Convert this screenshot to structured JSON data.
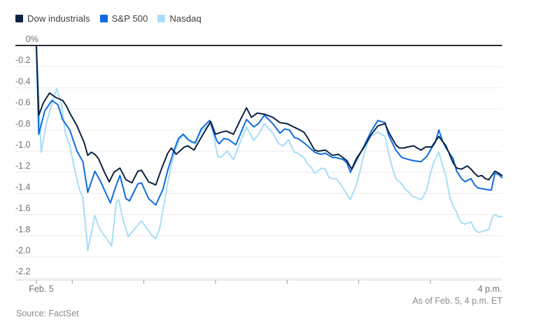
{
  "legend": {
    "items": [
      {
        "label": "Dow industrials",
        "color": "#0c2340"
      },
      {
        "label": "S&P 500",
        "color": "#0f6be0"
      },
      {
        "label": "Nasdaq",
        "color": "#a8ddf8"
      }
    ]
  },
  "chart_data": {
    "type": "line",
    "title": "",
    "x_unit": "minutes since 9:30 a.m. ET open, Feb. 5",
    "xlim": [
      0,
      390
    ],
    "y_unit": "percent change",
    "ylim": [
      -2.2,
      0
    ],
    "grid": true,
    "legend_position": "top-left",
    "zero_line_color": "#2e2e2e",
    "gridline_color": "#ebebeb",
    "axis_line_color": "#d2d2d2",
    "tick_color": "#9b9b9b",
    "label_color": "#707070",
    "y_tick_labels": [
      "0%",
      "-0.2",
      "-0.4",
      "-0.6",
      "-0.8",
      "-1.0",
      "-1.2",
      "-1.4",
      "-1.6",
      "-1.8",
      "-2.0",
      "-2.2"
    ],
    "x_ticks": [
      {
        "minutes": 0,
        "label": "Feb. 5"
      },
      {
        "minutes": 30,
        "label": ""
      },
      {
        "minutes": 90,
        "label": ""
      },
      {
        "minutes": 150,
        "label": ""
      },
      {
        "minutes": 210,
        "label": ""
      },
      {
        "minutes": 270,
        "label": ""
      },
      {
        "minutes": 330,
        "label": ""
      }
    ],
    "x_end_label": "4 p.m.",
    "as_of": "As of Feb. 5, 4 p.m. ET",
    "source": "Source: FactSet",
    "series": [
      {
        "name": "Dow industrials",
        "color": "#0c2340",
        "width": 2,
        "points": [
          [
            0,
            0
          ],
          [
            2,
            -0.66
          ],
          [
            6,
            -0.54
          ],
          [
            11,
            -0.45
          ],
          [
            16,
            -0.49
          ],
          [
            22,
            -0.52
          ],
          [
            25,
            -0.57
          ],
          [
            28,
            -0.64
          ],
          [
            34,
            -0.76
          ],
          [
            40,
            -0.92
          ],
          [
            43,
            -1.04
          ],
          [
            46,
            -1.01
          ],
          [
            49,
            -1.03
          ],
          [
            52,
            -1.07
          ],
          [
            57,
            -1.2
          ],
          [
            61,
            -1.29
          ],
          [
            65,
            -1.2
          ],
          [
            70,
            -1.16
          ],
          [
            75,
            -1.27
          ],
          [
            80,
            -1.3
          ],
          [
            85,
            -1.19
          ],
          [
            88,
            -1.18
          ],
          [
            94,
            -1.29
          ],
          [
            100,
            -1.32
          ],
          [
            105,
            -1.16
          ],
          [
            110,
            -1.02
          ],
          [
            113,
            -0.97
          ],
          [
            117,
            -1.03
          ],
          [
            124,
            -0.96
          ],
          [
            127,
            -0.95
          ],
          [
            132,
            -0.99
          ],
          [
            138,
            -0.87
          ],
          [
            146,
            -0.72
          ],
          [
            150,
            -0.84
          ],
          [
            155,
            -0.82
          ],
          [
            159,
            -0.81
          ],
          [
            165,
            -0.84
          ],
          [
            171,
            -0.7
          ],
          [
            176,
            -0.59
          ],
          [
            180,
            -0.68
          ],
          [
            185,
            -0.64
          ],
          [
            191,
            -0.65
          ],
          [
            198,
            -0.68
          ],
          [
            204,
            -0.73
          ],
          [
            210,
            -0.74
          ],
          [
            219,
            -0.79
          ],
          [
            224,
            -0.82
          ],
          [
            227,
            -0.87
          ],
          [
            233,
            -0.99
          ],
          [
            236,
            -1.0
          ],
          [
            242,
            -0.99
          ],
          [
            248,
            -1.04
          ],
          [
            253,
            -1.03
          ],
          [
            260,
            -1.09
          ],
          [
            264,
            -1.17
          ],
          [
            268,
            -1.07
          ],
          [
            274,
            -0.97
          ],
          [
            280,
            -0.85
          ],
          [
            286,
            -0.76
          ],
          [
            292,
            -0.74
          ],
          [
            295,
            -0.82
          ],
          [
            301,
            -0.94
          ],
          [
            304,
            -0.97
          ],
          [
            308,
            -0.97
          ],
          [
            311,
            -0.96
          ],
          [
            316,
            -0.95
          ],
          [
            319,
            -0.97
          ],
          [
            322,
            -0.99
          ],
          [
            326,
            -0.96
          ],
          [
            331,
            -0.96
          ],
          [
            337,
            -0.86
          ],
          [
            343,
            -0.95
          ],
          [
            349,
            -1.11
          ],
          [
            352,
            -1.16
          ],
          [
            356,
            -1.17
          ],
          [
            361,
            -1.14
          ],
          [
            364,
            -1.17
          ],
          [
            367,
            -1.21
          ],
          [
            370,
            -1.24
          ],
          [
            373,
            -1.23
          ],
          [
            376,
            -1.26
          ],
          [
            379,
            -1.27
          ],
          [
            384,
            -1.19
          ],
          [
            386,
            -1.2
          ],
          [
            390,
            -1.23
          ]
        ]
      },
      {
        "name": "S&P 500",
        "color": "#0f6be0",
        "width": 2,
        "points": [
          [
            0,
            0
          ],
          [
            2,
            -0.84
          ],
          [
            7,
            -0.62
          ],
          [
            13,
            -0.52
          ],
          [
            18,
            -0.56
          ],
          [
            22,
            -0.7
          ],
          [
            28,
            -0.8
          ],
          [
            34,
            -1.0
          ],
          [
            39,
            -1.1
          ],
          [
            43,
            -1.39
          ],
          [
            49,
            -1.19
          ],
          [
            54,
            -1.29
          ],
          [
            57,
            -1.37
          ],
          [
            62,
            -1.49
          ],
          [
            66,
            -1.35
          ],
          [
            70,
            -1.23
          ],
          [
            75,
            -1.45
          ],
          [
            78,
            -1.47
          ],
          [
            85,
            -1.31
          ],
          [
            88,
            -1.3
          ],
          [
            94,
            -1.45
          ],
          [
            100,
            -1.51
          ],
          [
            106,
            -1.36
          ],
          [
            110,
            -1.18
          ],
          [
            115,
            -1.0
          ],
          [
            119,
            -0.88
          ],
          [
            123,
            -0.84
          ],
          [
            127,
            -0.89
          ],
          [
            130,
            -0.91
          ],
          [
            133,
            -0.92
          ],
          [
            138,
            -0.79
          ],
          [
            145,
            -0.71
          ],
          [
            151,
            -0.9
          ],
          [
            153,
            -0.93
          ],
          [
            157,
            -0.88
          ],
          [
            161,
            -0.89
          ],
          [
            167,
            -0.94
          ],
          [
            173,
            -0.78
          ],
          [
            176,
            -0.7
          ],
          [
            182,
            -0.77
          ],
          [
            186,
            -0.74
          ],
          [
            191,
            -0.66
          ],
          [
            198,
            -0.74
          ],
          [
            204,
            -0.83
          ],
          [
            208,
            -0.79
          ],
          [
            212,
            -0.8
          ],
          [
            216,
            -0.87
          ],
          [
            219,
            -0.88
          ],
          [
            224,
            -0.92
          ],
          [
            227,
            -0.95
          ],
          [
            233,
            -1.01
          ],
          [
            238,
            -1.03
          ],
          [
            242,
            -1.02
          ],
          [
            248,
            -1.06
          ],
          [
            251,
            -1.06
          ],
          [
            257,
            -1.08
          ],
          [
            260,
            -1.11
          ],
          [
            263,
            -1.2
          ],
          [
            268,
            -1.09
          ],
          [
            274,
            -0.96
          ],
          [
            280,
            -0.82
          ],
          [
            286,
            -0.71
          ],
          [
            292,
            -0.73
          ],
          [
            295,
            -0.85
          ],
          [
            301,
            -0.99
          ],
          [
            306,
            -1.06
          ],
          [
            312,
            -1.08
          ],
          [
            316,
            -1.09
          ],
          [
            322,
            -1.1
          ],
          [
            327,
            -1.05
          ],
          [
            331,
            -0.97
          ],
          [
            334,
            -0.92
          ],
          [
            337,
            -0.8
          ],
          [
            340,
            -0.9
          ],
          [
            343,
            -0.97
          ],
          [
            349,
            -1.07
          ],
          [
            352,
            -1.19
          ],
          [
            356,
            -1.26
          ],
          [
            359,
            -1.29
          ],
          [
            364,
            -1.26
          ],
          [
            367,
            -1.32
          ],
          [
            370,
            -1.35
          ],
          [
            376,
            -1.36
          ],
          [
            381,
            -1.37
          ],
          [
            384,
            -1.21
          ],
          [
            387,
            -1.22
          ],
          [
            390,
            -1.25
          ]
        ]
      },
      {
        "name": "Nasdaq",
        "color": "#a8ddf8",
        "width": 2,
        "points": [
          [
            0,
            0
          ],
          [
            4,
            -1.01
          ],
          [
            8,
            -0.75
          ],
          [
            13,
            -0.55
          ],
          [
            17,
            -0.41
          ],
          [
            21,
            -0.55
          ],
          [
            24,
            -0.82
          ],
          [
            28,
            -0.95
          ],
          [
            32,
            -1.17
          ],
          [
            36,
            -1.36
          ],
          [
            39,
            -1.44
          ],
          [
            43,
            -1.94
          ],
          [
            49,
            -1.61
          ],
          [
            52,
            -1.71
          ],
          [
            55,
            -1.77
          ],
          [
            57,
            -1.8
          ],
          [
            59,
            -1.83
          ],
          [
            62,
            -1.88
          ],
          [
            63,
            -1.9
          ],
          [
            67,
            -1.48
          ],
          [
            69,
            -1.46
          ],
          [
            73,
            -1.67
          ],
          [
            77,
            -1.81
          ],
          [
            82,
            -1.74
          ],
          [
            88,
            -1.66
          ],
          [
            93,
            -1.74
          ],
          [
            97,
            -1.8
          ],
          [
            100,
            -1.83
          ],
          [
            103,
            -1.74
          ],
          [
            107,
            -1.5
          ],
          [
            110,
            -1.3
          ],
          [
            113,
            -1.13
          ],
          [
            117,
            -0.97
          ],
          [
            120,
            -0.89
          ],
          [
            123,
            -0.85
          ],
          [
            127,
            -0.89
          ],
          [
            130,
            -0.92
          ],
          [
            133,
            -0.93
          ],
          [
            138,
            -0.81
          ],
          [
            146,
            -0.73
          ],
          [
            152,
            -1.05
          ],
          [
            154,
            -1.06
          ],
          [
            160,
            -1.0
          ],
          [
            165,
            -1.08
          ],
          [
            173,
            -0.85
          ],
          [
            176,
            -0.77
          ],
          [
            182,
            -0.9
          ],
          [
            186,
            -0.84
          ],
          [
            191,
            -0.74
          ],
          [
            198,
            -0.83
          ],
          [
            203,
            -0.93
          ],
          [
            207,
            -0.95
          ],
          [
            211,
            -0.89
          ],
          [
            216,
            -1.01
          ],
          [
            219,
            -1.02
          ],
          [
            224,
            -1.06
          ],
          [
            227,
            -1.12
          ],
          [
            230,
            -1.15
          ],
          [
            233,
            -1.21
          ],
          [
            239,
            -1.16
          ],
          [
            242,
            -1.17
          ],
          [
            245,
            -1.25
          ],
          [
            248,
            -1.26
          ],
          [
            251,
            -1.26
          ],
          [
            254,
            -1.3
          ],
          [
            257,
            -1.35
          ],
          [
            260,
            -1.41
          ],
          [
            263,
            -1.46
          ],
          [
            265,
            -1.4
          ],
          [
            268,
            -1.32
          ],
          [
            271,
            -1.19
          ],
          [
            274,
            -1.05
          ],
          [
            277,
            -0.93
          ],
          [
            280,
            -0.86
          ],
          [
            283,
            -0.84
          ],
          [
            286,
            -0.82
          ],
          [
            289,
            -0.84
          ],
          [
            292,
            -0.86
          ],
          [
            295,
            -1.02
          ],
          [
            298,
            -1.15
          ],
          [
            301,
            -1.26
          ],
          [
            304,
            -1.29
          ],
          [
            306,
            -1.31
          ],
          [
            309,
            -1.36
          ],
          [
            312,
            -1.39
          ],
          [
            315,
            -1.43
          ],
          [
            318,
            -1.44
          ],
          [
            322,
            -1.46
          ],
          [
            324,
            -1.43
          ],
          [
            327,
            -1.36
          ],
          [
            330,
            -1.21
          ],
          [
            333,
            -1.1
          ],
          [
            337,
            -1.01
          ],
          [
            340,
            -1.13
          ],
          [
            343,
            -1.24
          ],
          [
            346,
            -1.42
          ],
          [
            349,
            -1.52
          ],
          [
            352,
            -1.58
          ],
          [
            354,
            -1.64
          ],
          [
            356,
            -1.68
          ],
          [
            359,
            -1.69
          ],
          [
            364,
            -1.67
          ],
          [
            367,
            -1.74
          ],
          [
            370,
            -1.77
          ],
          [
            373,
            -1.76
          ],
          [
            376,
            -1.75
          ],
          [
            379,
            -1.74
          ],
          [
            382,
            -1.62
          ],
          [
            384,
            -1.6
          ],
          [
            387,
            -1.62
          ],
          [
            390,
            -1.62
          ]
        ]
      }
    ]
  }
}
